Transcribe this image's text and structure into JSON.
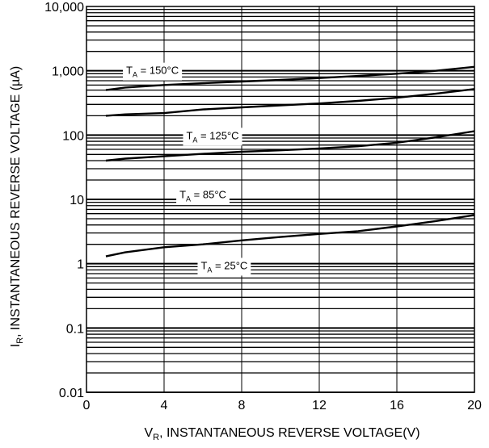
{
  "chart_data": {
    "type": "line",
    "title": "",
    "xlabel": {
      "main": "V",
      "sub": "R",
      "rest": ", INSTANTANEOUS REVERSE VOLTAGE(V)"
    },
    "ylabel": {
      "main": "I",
      "sub": "R",
      "rest": ", INSTANTANEOUS REVERSE VOLTAGE (µA)"
    },
    "xlim": [
      0,
      20
    ],
    "ylim": [
      0.01,
      10000
    ],
    "yscale": "log",
    "grid": true,
    "xticks": [
      0,
      4,
      8,
      12,
      16,
      20
    ],
    "xtick_labels": [
      "0",
      "4",
      "8",
      "12",
      "16",
      "20"
    ],
    "yticks": [
      0.01,
      0.1,
      1,
      10,
      100,
      1000,
      10000
    ],
    "ytick_labels": [
      "0.01",
      "0.1",
      "1",
      "10",
      "100",
      "1,000",
      "10,000"
    ],
    "series": [
      {
        "x": [
          1,
          2,
          4,
          6,
          8,
          10,
          12,
          14,
          16,
          18,
          20
        ],
        "y": [
          500,
          550,
          600,
          640,
          680,
          720,
          770,
          830,
          900,
          1000,
          1150
        ]
      },
      {
        "x": [
          1,
          2,
          4,
          6,
          8,
          10,
          12,
          14,
          16,
          18,
          20
        ],
        "y": [
          200,
          210,
          220,
          250,
          270,
          290,
          310,
          340,
          380,
          440,
          520
        ]
      },
      {
        "x": [
          1,
          2,
          4,
          6,
          8,
          10,
          12,
          14,
          16,
          18,
          20
        ],
        "y": [
          40,
          43,
          47,
          51,
          55,
          58,
          62,
          67,
          76,
          92,
          115
        ]
      },
      {
        "x": [
          1,
          2,
          4,
          6,
          8,
          10,
          12,
          14,
          16,
          18,
          20
        ],
        "y": [
          1.3,
          1.5,
          1.8,
          2.0,
          2.3,
          2.6,
          2.9,
          3.2,
          3.8,
          4.6,
          5.7
        ]
      }
    ],
    "annotations": [
      {
        "main": "T",
        "sub": "A",
        "rest": " = 150°C",
        "x": 3.4,
        "y": 1030
      },
      {
        "main": "T",
        "sub": "A",
        "rest": " = 125°C",
        "x": 6.5,
        "y": 100
      },
      {
        "main": "T",
        "sub": "A",
        "rest": " = 85°C",
        "x": 6.0,
        "y": 12
      },
      {
        "main": "T",
        "sub": "A",
        "rest": " = 25°C",
        "x": 7.1,
        "y": 0.95
      }
    ]
  }
}
